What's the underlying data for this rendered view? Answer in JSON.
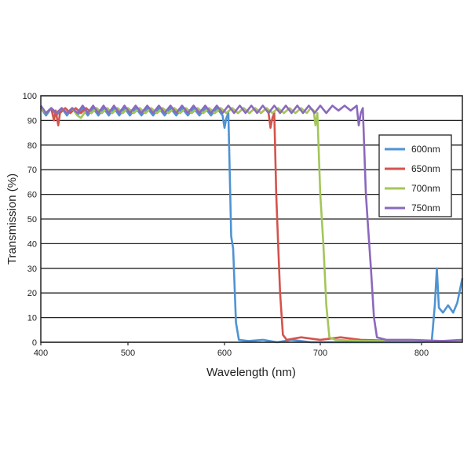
{
  "chart_data": {
    "type": "line",
    "title": "",
    "xlabel": "Wavelength (nm)",
    "ylabel": "Transmission (%)",
    "xlim": [
      400,
      840
    ],
    "ylim": [
      0,
      100
    ],
    "xticks": [
      400,
      500,
      600,
      700,
      800
    ],
    "yticks": [
      0,
      10,
      20,
      30,
      40,
      50,
      60,
      70,
      80,
      90,
      100
    ],
    "grid": "horizontal",
    "legend_position": "right",
    "series": [
      {
        "name": "600nm",
        "color": "#4f93d2",
        "points": [
          [
            400,
            95
          ],
          [
            406,
            92
          ],
          [
            412,
            95
          ],
          [
            418,
            92
          ],
          [
            424,
            95
          ],
          [
            430,
            92
          ],
          [
            436,
            95
          ],
          [
            442,
            92
          ],
          [
            448,
            95
          ],
          [
            454,
            92
          ],
          [
            460,
            95
          ],
          [
            466,
            92
          ],
          [
            472,
            95
          ],
          [
            478,
            92
          ],
          [
            484,
            95
          ],
          [
            490,
            92
          ],
          [
            496,
            95
          ],
          [
            502,
            92
          ],
          [
            508,
            95
          ],
          [
            514,
            92
          ],
          [
            520,
            95
          ],
          [
            526,
            92
          ],
          [
            532,
            95
          ],
          [
            538,
            92
          ],
          [
            544,
            95
          ],
          [
            550,
            92
          ],
          [
            556,
            95
          ],
          [
            562,
            92
          ],
          [
            568,
            95
          ],
          [
            574,
            92
          ],
          [
            580,
            95
          ],
          [
            586,
            92
          ],
          [
            592,
            95
          ],
          [
            598,
            92
          ],
          [
            600,
            87
          ],
          [
            602,
            91
          ],
          [
            604,
            93
          ],
          [
            606,
            60
          ],
          [
            607,
            43
          ],
          [
            609,
            38
          ],
          [
            612,
            8
          ],
          [
            615,
            1
          ],
          [
            625,
            0.5
          ],
          [
            640,
            1
          ],
          [
            655,
            0
          ],
          [
            670,
            1
          ],
          [
            690,
            0
          ],
          [
            720,
            0
          ],
          [
            760,
            0
          ],
          [
            800,
            0
          ],
          [
            810,
            0.5
          ],
          [
            813,
            15
          ],
          [
            815,
            30
          ],
          [
            817,
            14
          ],
          [
            821,
            12
          ],
          [
            826,
            15
          ],
          [
            831,
            12
          ],
          [
            835,
            16
          ],
          [
            840,
            26
          ]
        ]
      },
      {
        "name": "650nm",
        "color": "#d4534c",
        "points": [
          [
            400,
            95
          ],
          [
            406,
            93
          ],
          [
            412,
            95
          ],
          [
            415,
            90
          ],
          [
            417,
            94
          ],
          [
            420,
            88
          ],
          [
            422,
            93
          ],
          [
            428,
            95
          ],
          [
            434,
            93
          ],
          [
            440,
            95
          ],
          [
            446,
            93
          ],
          [
            452,
            95
          ],
          [
            458,
            93
          ],
          [
            464,
            95
          ],
          [
            470,
            93
          ],
          [
            476,
            95
          ],
          [
            482,
            93
          ],
          [
            488,
            95
          ],
          [
            494,
            93
          ],
          [
            500,
            95
          ],
          [
            506,
            93
          ],
          [
            512,
            95
          ],
          [
            518,
            93
          ],
          [
            524,
            95
          ],
          [
            530,
            93
          ],
          [
            536,
            95
          ],
          [
            542,
            93
          ],
          [
            548,
            95
          ],
          [
            554,
            93
          ],
          [
            560,
            95
          ],
          [
            566,
            93
          ],
          [
            572,
            95
          ],
          [
            578,
            93
          ],
          [
            584,
            95
          ],
          [
            590,
            93
          ],
          [
            596,
            95
          ],
          [
            602,
            93
          ],
          [
            608,
            95
          ],
          [
            614,
            93
          ],
          [
            620,
            95
          ],
          [
            626,
            93
          ],
          [
            632,
            95
          ],
          [
            638,
            93
          ],
          [
            644,
            95
          ],
          [
            646,
            93
          ],
          [
            648,
            87
          ],
          [
            650,
            91
          ],
          [
            652,
            93
          ],
          [
            654,
            60
          ],
          [
            656,
            40
          ],
          [
            658,
            20
          ],
          [
            661,
            3
          ],
          [
            665,
            1
          ],
          [
            680,
            2
          ],
          [
            700,
            1
          ],
          [
            720,
            2
          ],
          [
            740,
            1
          ],
          [
            780,
            0.5
          ],
          [
            840,
            0.5
          ]
        ]
      },
      {
        "name": "700nm",
        "color": "#a3c65a",
        "points": [
          [
            400,
            95
          ],
          [
            406,
            93
          ],
          [
            412,
            95
          ],
          [
            418,
            93
          ],
          [
            424,
            95
          ],
          [
            430,
            93
          ],
          [
            436,
            95
          ],
          [
            442,
            92
          ],
          [
            446,
            91
          ],
          [
            452,
            94
          ],
          [
            458,
            93
          ],
          [
            464,
            95
          ],
          [
            470,
            93
          ],
          [
            476,
            95
          ],
          [
            482,
            93
          ],
          [
            488,
            95
          ],
          [
            494,
            93
          ],
          [
            500,
            95
          ],
          [
            506,
            93
          ],
          [
            512,
            95
          ],
          [
            518,
            93
          ],
          [
            524,
            95
          ],
          [
            530,
            93
          ],
          [
            536,
            95
          ],
          [
            542,
            93
          ],
          [
            548,
            95
          ],
          [
            554,
            93
          ],
          [
            560,
            95
          ],
          [
            566,
            93
          ],
          [
            572,
            95
          ],
          [
            578,
            93
          ],
          [
            584,
            95
          ],
          [
            590,
            93
          ],
          [
            596,
            95
          ],
          [
            602,
            93
          ],
          [
            608,
            95
          ],
          [
            614,
            93
          ],
          [
            620,
            95
          ],
          [
            626,
            93
          ],
          [
            632,
            95
          ],
          [
            638,
            93
          ],
          [
            644,
            95
          ],
          [
            650,
            93
          ],
          [
            656,
            95
          ],
          [
            662,
            93
          ],
          [
            668,
            95
          ],
          [
            674,
            93
          ],
          [
            680,
            95
          ],
          [
            686,
            93
          ],
          [
            690,
            95
          ],
          [
            693,
            94
          ],
          [
            695,
            88
          ],
          [
            697,
            93
          ],
          [
            700,
            60
          ],
          [
            703,
            40
          ],
          [
            706,
            15
          ],
          [
            709,
            2
          ],
          [
            715,
            1
          ],
          [
            740,
            0.5
          ],
          [
            840,
            0.5
          ]
        ]
      },
      {
        "name": "750nm",
        "color": "#8b68bd",
        "points": [
          [
            400,
            96
          ],
          [
            406,
            93
          ],
          [
            412,
            95
          ],
          [
            418,
            93
          ],
          [
            424,
            95
          ],
          [
            430,
            93
          ],
          [
            436,
            95
          ],
          [
            442,
            93
          ],
          [
            448,
            96
          ],
          [
            454,
            93
          ],
          [
            460,
            96
          ],
          [
            466,
            93
          ],
          [
            472,
            96
          ],
          [
            478,
            93
          ],
          [
            484,
            96
          ],
          [
            490,
            93
          ],
          [
            496,
            96
          ],
          [
            502,
            93
          ],
          [
            508,
            96
          ],
          [
            514,
            93
          ],
          [
            520,
            96
          ],
          [
            526,
            93
          ],
          [
            532,
            96
          ],
          [
            538,
            93
          ],
          [
            544,
            96
          ],
          [
            550,
            93
          ],
          [
            556,
            96
          ],
          [
            562,
            93
          ],
          [
            568,
            96
          ],
          [
            574,
            93
          ],
          [
            580,
            96
          ],
          [
            586,
            93
          ],
          [
            592,
            96
          ],
          [
            598,
            93
          ],
          [
            604,
            96
          ],
          [
            610,
            93
          ],
          [
            616,
            96
          ],
          [
            622,
            93
          ],
          [
            628,
            96
          ],
          [
            634,
            93
          ],
          [
            640,
            96
          ],
          [
            646,
            93
          ],
          [
            652,
            96
          ],
          [
            658,
            93
          ],
          [
            664,
            96
          ],
          [
            670,
            93
          ],
          [
            676,
            96
          ],
          [
            682,
            93
          ],
          [
            688,
            96
          ],
          [
            694,
            93
          ],
          [
            700,
            96
          ],
          [
            706,
            93
          ],
          [
            712,
            96
          ],
          [
            718,
            94
          ],
          [
            724,
            96
          ],
          [
            730,
            94
          ],
          [
            736,
            96
          ],
          [
            738,
            88
          ],
          [
            740,
            93
          ],
          [
            742,
            95
          ],
          [
            745,
            60
          ],
          [
            748,
            42
          ],
          [
            750,
            30
          ],
          [
            753,
            10
          ],
          [
            756,
            2
          ],
          [
            765,
            1
          ],
          [
            790,
            1
          ],
          [
            820,
            0.5
          ],
          [
            840,
            1
          ]
        ]
      }
    ]
  }
}
